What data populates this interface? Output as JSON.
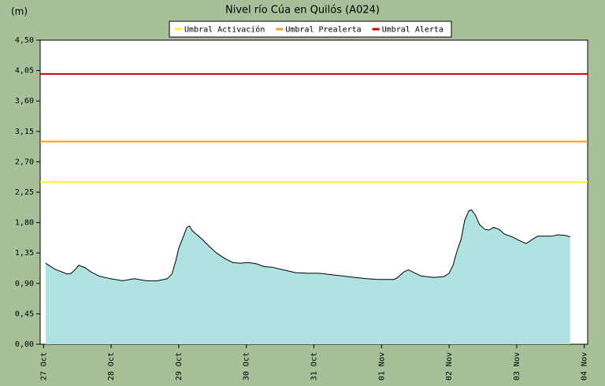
{
  "chart_data": {
    "type": "area",
    "title": "Nivel río Cúa en Quilós  (A024)",
    "y_axis_label": "(m)",
    "x": [
      0.03,
      0.17,
      0.35,
      0.41,
      0.49,
      0.52,
      0.62,
      0.7,
      0.82,
      0.99,
      1.17,
      1.34,
      1.52,
      1.69,
      1.83,
      1.9,
      1.96,
      2.0,
      2.07,
      2.12,
      2.16,
      2.2,
      2.27,
      2.35,
      2.45,
      2.56,
      2.68,
      2.8,
      2.91,
      3.03,
      3.15,
      3.26,
      3.38,
      3.55,
      3.73,
      3.9,
      4.08,
      4.25,
      4.43,
      4.6,
      4.78,
      4.95,
      5.19,
      5.24,
      5.33,
      5.4,
      5.48,
      5.59,
      5.77,
      5.92,
      6.0,
      6.06,
      6.12,
      6.18,
      6.23,
      6.29,
      6.33,
      6.39,
      6.45,
      6.53,
      6.59,
      6.66,
      6.74,
      6.82,
      6.93,
      7.05,
      7.14,
      7.23,
      7.31,
      7.4,
      7.52,
      7.61,
      7.72,
      7.79
    ],
    "series": [
      {
        "color": "#b0e2e2",
        "line_color": "#000000",
        "values": [
          1.2,
          1.11,
          1.04,
          1.05,
          1.13,
          1.17,
          1.13,
          1.07,
          1.01,
          0.97,
          0.94,
          0.97,
          0.94,
          0.94,
          0.97,
          1.04,
          1.25,
          1.42,
          1.6,
          1.73,
          1.75,
          1.68,
          1.62,
          1.55,
          1.45,
          1.35,
          1.27,
          1.21,
          1.2,
          1.21,
          1.19,
          1.15,
          1.14,
          1.1,
          1.06,
          1.05,
          1.05,
          1.03,
          1.01,
          0.99,
          0.97,
          0.96,
          0.96,
          0.99,
          1.07,
          1.1,
          1.06,
          1.01,
          0.99,
          1.0,
          1.05,
          1.18,
          1.39,
          1.56,
          1.83,
          1.97,
          1.99,
          1.91,
          1.77,
          1.7,
          1.69,
          1.73,
          1.7,
          1.63,
          1.59,
          1.53,
          1.49,
          1.55,
          1.6,
          1.6,
          1.6,
          1.62,
          1.61,
          1.59
        ]
      }
    ],
    "thresholds": [
      {
        "name": "Umbral Activación",
        "color": "#ffee33",
        "value": 2.4
      },
      {
        "name": "Umbral Prealerta",
        "color": "#ff9922",
        "value": 3.0
      },
      {
        "name": "Umbral Alerta",
        "color": "#cc0000",
        "value": 4.0
      }
    ],
    "xlim": [
      -0.05,
      8.05
    ],
    "xticks": [
      {
        "value": 0,
        "label": "27 Oct"
      },
      {
        "value": 1,
        "label": "28 Oct"
      },
      {
        "value": 2,
        "label": "29 Oct"
      },
      {
        "value": 3,
        "label": "30 Oct"
      },
      {
        "value": 4,
        "label": "31 Oct"
      },
      {
        "value": 5,
        "label": "01 Nov"
      },
      {
        "value": 6,
        "label": "02 Nov"
      },
      {
        "value": 7,
        "label": "03 Nov"
      },
      {
        "value": 8,
        "label": "04 Nov"
      }
    ],
    "ylim": [
      0,
      4.5
    ],
    "yticks": [
      {
        "value": 0,
        "label": "0,00"
      },
      {
        "value": 0.45,
        "label": "0,45"
      },
      {
        "value": 0.9,
        "label": "0,90"
      },
      {
        "value": 1.35,
        "label": "1,35"
      },
      {
        "value": 1.8,
        "label": "1,80"
      },
      {
        "value": 2.25,
        "label": "2,25"
      },
      {
        "value": 2.7,
        "label": "2,70"
      },
      {
        "value": 3.15,
        "label": "3,15"
      },
      {
        "value": 3.6,
        "label": "3,60"
      },
      {
        "value": 4.05,
        "label": "4,05"
      },
      {
        "value": 4.5,
        "label": "4,50"
      }
    ]
  }
}
